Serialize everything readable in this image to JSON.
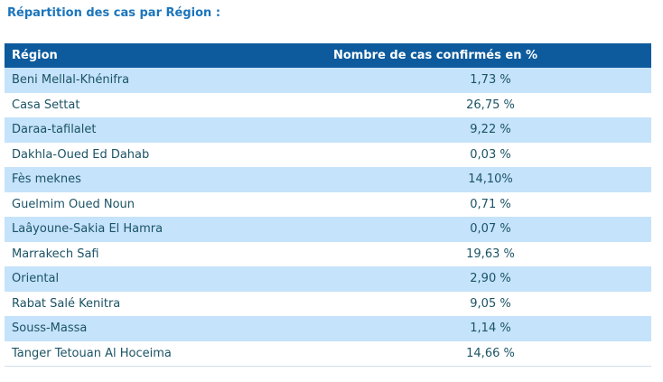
{
  "page": {
    "title": "Répartition des cas par Région :"
  },
  "table": {
    "columns": {
      "region": "Région",
      "value": "Nombre de cas confirmés en %"
    },
    "rows": [
      {
        "region": "Beni Mellal-Khénifra",
        "value": "1,73 %"
      },
      {
        "region": "Casa Settat",
        "value": "26,75 %"
      },
      {
        "region": "Daraa-tafilalet",
        "value": "9,22 %"
      },
      {
        "region": "Dakhla-Oued Ed Dahab",
        "value": "0,03 %"
      },
      {
        "region": "Fès meknes",
        "value": "14,10%"
      },
      {
        "region": "Guelmim Oued Noun",
        "value": "0,71 %"
      },
      {
        "region": "Laâyoune-Sakia El Hamra",
        "value": "0,07 %"
      },
      {
        "region": "Marrakech Safi",
        "value": "19,63 %"
      },
      {
        "region": "Oriental",
        "value": "2,90 %"
      },
      {
        "region": "Rabat Salé Kenitra",
        "value": "9,05 %"
      },
      {
        "region": "Souss-Massa",
        "value": "1,14 %"
      },
      {
        "region": "Tanger Tetouan Al Hoceima",
        "value": "14,66 %"
      }
    ],
    "colors": {
      "title_text": "#1b75bc",
      "header_bg": "#0d5b9d",
      "header_text": "#ffffff",
      "row_alt_bg": "#c5e3fb",
      "row_bg": "#ffffff",
      "row_text": "#1b5365"
    }
  },
  "chart_data": {
    "type": "table",
    "title": "Répartition des cas par Région :",
    "columns": [
      "Région",
      "Nombre de cas confirmés en %"
    ],
    "categories": [
      "Beni Mellal-Khénifra",
      "Casa Settat",
      "Daraa-tafilalet",
      "Dakhla-Oued Ed Dahab",
      "Fès meknes",
      "Guelmim Oued Noun",
      "Laâyoune-Sakia El Hamra",
      "Marrakech Safi",
      "Oriental",
      "Rabat Salé Kenitra",
      "Souss-Massa",
      "Tanger Tetouan Al Hoceima"
    ],
    "values": [
      1.73,
      26.75,
      9.22,
      0.03,
      14.1,
      0.71,
      0.07,
      19.63,
      2.9,
      9.05,
      1.14,
      14.66
    ],
    "value_unit": "%"
  }
}
